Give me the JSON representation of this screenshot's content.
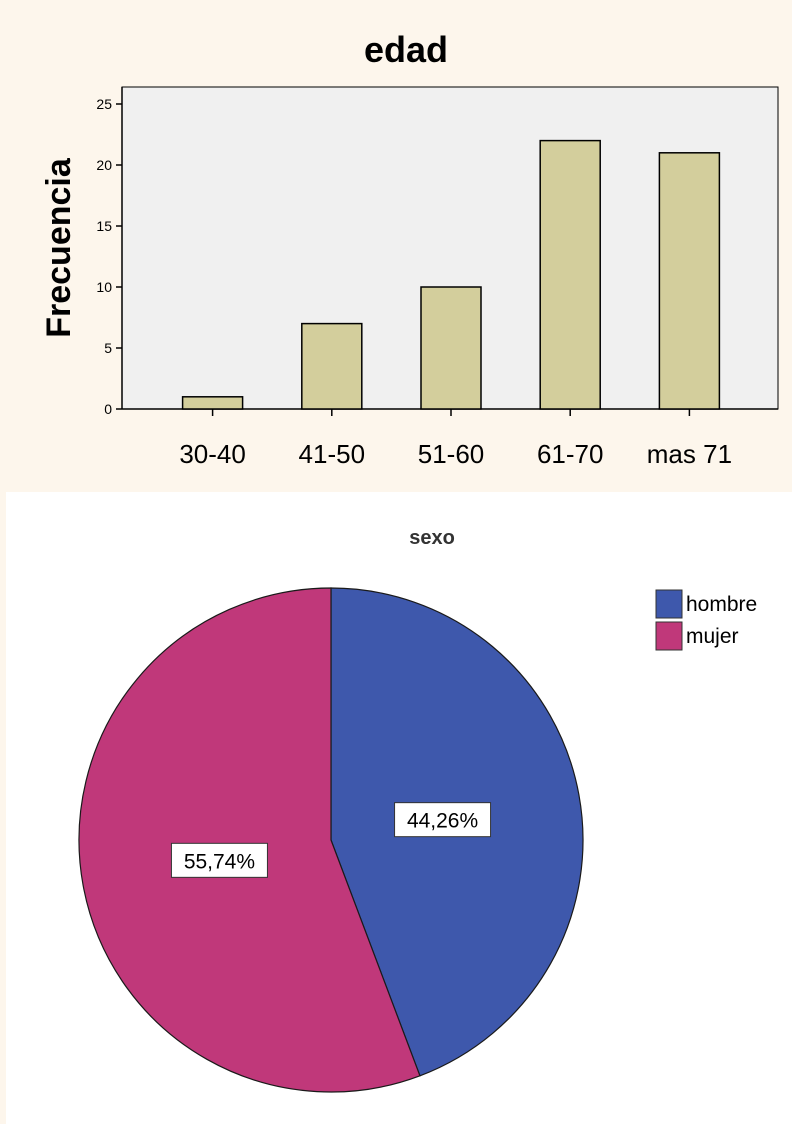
{
  "chart_data": [
    {
      "type": "bar",
      "title": "edad",
      "xlabel": "",
      "ylabel": "Frecuencia",
      "categories": [
        "30-40",
        "41-50",
        "51-60",
        "61-70",
        "mas 71"
      ],
      "values": [
        1,
        7,
        10,
        22,
        21
      ],
      "ylim": [
        0,
        25
      ],
      "yticks": [
        0,
        5,
        10,
        15,
        20,
        25
      ],
      "grid": false,
      "colors": {
        "bar": "#d3ce9c",
        "plot_background": "#f0f0f0",
        "outline": "#000000"
      }
    },
    {
      "type": "pie",
      "title": "sexo",
      "labels": [
        "hombre",
        "mujer"
      ],
      "values": [
        44.26,
        55.74
      ],
      "data_labels": [
        "44,26%",
        "55,74%"
      ],
      "colors": [
        "#3e58ac",
        "#c0387a"
      ],
      "legend": "top-right"
    }
  ]
}
